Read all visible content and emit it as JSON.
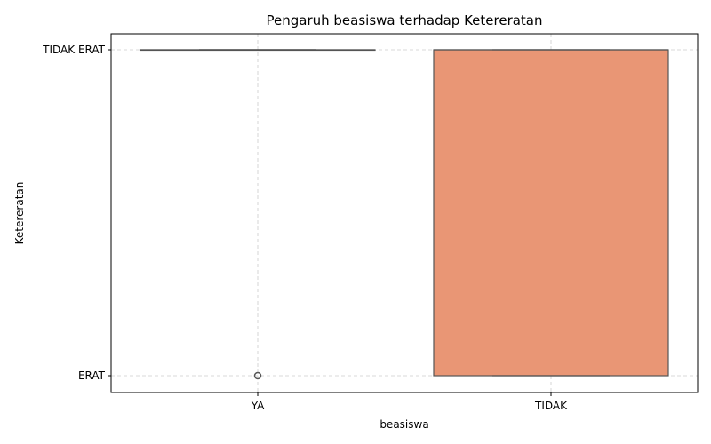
{
  "chart_data": {
    "type": "box",
    "title": "Pengaruh beasiswa terhadap Ketereratan",
    "xlabel": "beasiswa",
    "ylabel": "Ketereratan",
    "categories": [
      "YA",
      "TIDAK"
    ],
    "y_categories": [
      "ERAT",
      "TIDAK ERAT"
    ],
    "boxes": [
      {
        "category": "YA",
        "q1": "TIDAK ERAT",
        "median": "TIDAK ERAT",
        "q3": "TIDAK ERAT",
        "whisker_low": "TIDAK ERAT",
        "whisker_high": "TIDAK ERAT",
        "outliers": [
          "ERAT"
        ],
        "color": "#fc8d62"
      },
      {
        "category": "TIDAK",
        "q1": "ERAT",
        "median": "TIDAK ERAT",
        "q3": "TIDAK ERAT",
        "whisker_low": "ERAT",
        "whisker_high": "TIDAK ERAT",
        "outliers": [],
        "color": "#e99675"
      }
    ],
    "grid": true,
    "legend": "none",
    "colors": {
      "box_edge": "#555555",
      "grid": "#cccccc"
    }
  }
}
